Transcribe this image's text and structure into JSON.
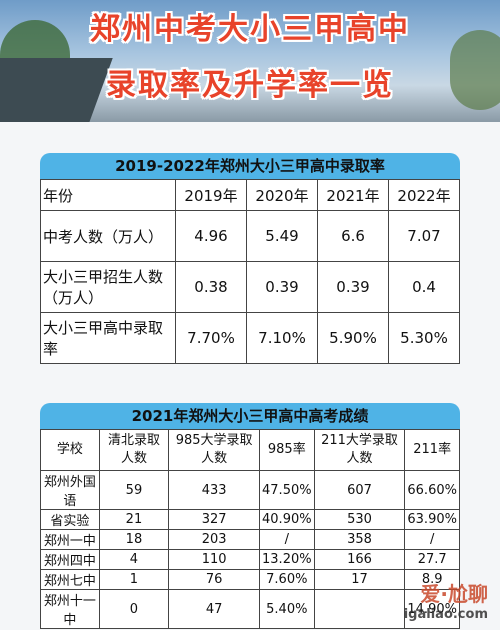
{
  "header": {
    "title_line1": "郑州中考大小三甲高中",
    "title_line2": "录取率及升学率一览"
  },
  "table1": {
    "title": "2019-2022年郑州大小三甲高中录取率",
    "header": [
      "年份",
      "2019年",
      "2020年",
      "2021年",
      "2022年"
    ],
    "rows": [
      [
        "中考人数（万人）",
        "4.96",
        "5.49",
        "6.6",
        "7.07"
      ],
      [
        "大小三甲招生人数（万人）",
        "0.38",
        "0.39",
        "0.39",
        "0.4"
      ],
      [
        "大小三甲高中录取率",
        "7.70%",
        "7.10%",
        "5.90%",
        "5.30%"
      ]
    ]
  },
  "table2": {
    "title": "2021年郑州大小三甲高中高考成绩",
    "header": [
      "学校",
      "清北录取人数",
      "985大学录取人数",
      "985率",
      "211大学录取人数",
      "211率"
    ],
    "rows": [
      [
        "郑州外国语",
        "59",
        "433",
        "47.50%",
        "607",
        "66.60%"
      ],
      [
        "省实验",
        "21",
        "327",
        "40.90%",
        "530",
        "63.90%"
      ],
      [
        "郑州一中",
        "18",
        "203",
        "/",
        "358",
        "/"
      ],
      [
        "郑州四中",
        "4",
        "110",
        "13.20%",
        "166",
        "27.7"
      ],
      [
        "郑州七中",
        "1",
        "76",
        "7.60%",
        "17",
        "8.9"
      ],
      [
        "郑州十一中",
        "0",
        "47",
        "5.40%",
        null,
        "14.90%"
      ]
    ]
  },
  "watermark": {
    "brand": "爱·尬聊",
    "site": "igaliao.com"
  }
}
